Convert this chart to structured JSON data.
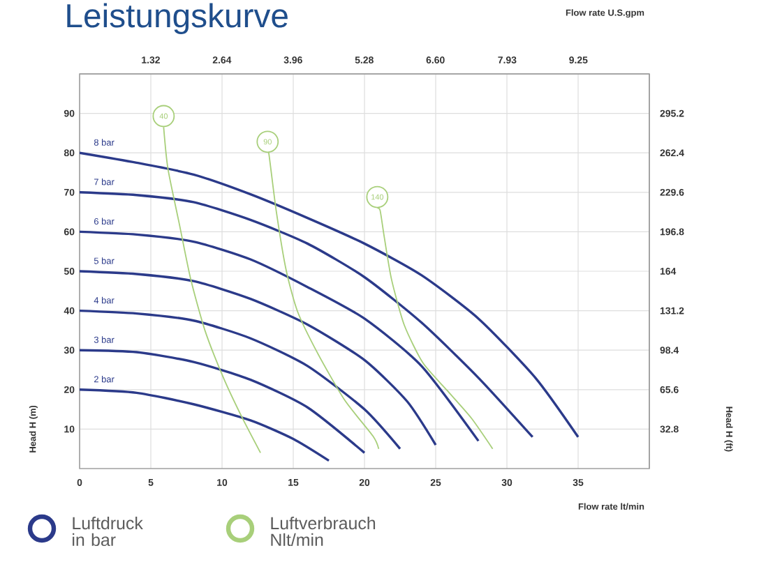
{
  "chart_data": {
    "type": "line",
    "title": "Leistungskurve",
    "xlabel": "Flow rate  lt/min",
    "x2label": "Flow rate U.S.gpm",
    "ylabel": "Head H (m)",
    "y2label": "Head H (ft)",
    "xlim": [
      0,
      40
    ],
    "xticks": [
      0,
      5,
      10,
      15,
      20,
      25,
      30,
      35
    ],
    "ylim": [
      0,
      100
    ],
    "yticks": [
      10,
      20,
      30,
      40,
      50,
      60,
      70,
      80,
      90
    ],
    "x2lim": [
      0,
      10.567
    ],
    "x2ticks": [
      {
        "value": 1.32,
        "label": "1.32"
      },
      {
        "value": 2.64,
        "label": "2.64"
      },
      {
        "value": 3.96,
        "label": "3.96"
      },
      {
        "value": 5.28,
        "label": "5.28"
      },
      {
        "value": 6.6,
        "label": "6.60"
      },
      {
        "value": 7.93,
        "label": "7.93"
      },
      {
        "value": 9.25,
        "label": "9.25"
      }
    ],
    "y2lim": [
      0,
      328
    ],
    "y2ticks": [
      32.8,
      65.6,
      98.4,
      131.2,
      164,
      196.8,
      229.6,
      262.4,
      295.2
    ],
    "grid": true,
    "marker": "none",
    "line_style": "solid",
    "series": [
      {
        "name": "8 bar",
        "color": "#2b3a8a",
        "x": [
          0,
          4,
          8,
          12,
          16,
          20,
          24,
          28,
          32,
          35
        ],
        "values": [
          80,
          77.5,
          74.5,
          69.5,
          63.5,
          57,
          49,
          38,
          23,
          8
        ]
      },
      {
        "name": "7 bar",
        "color": "#2b3a8a",
        "x": [
          0,
          4,
          8,
          12,
          16,
          20,
          24,
          28,
          31.8
        ],
        "values": [
          70,
          69.3,
          67.5,
          63,
          57,
          48.5,
          37,
          23,
          8
        ]
      },
      {
        "name": "6 bar",
        "color": "#2b3a8a",
        "x": [
          0,
          4,
          8,
          12,
          16,
          20,
          24,
          28
        ],
        "values": [
          60,
          59.3,
          57.5,
          53,
          46,
          38,
          26,
          7
        ]
      },
      {
        "name": "5 bar",
        "color": "#2b3a8a",
        "x": [
          0,
          4,
          8,
          12,
          16,
          20,
          23,
          25
        ],
        "values": [
          50,
          49.3,
          47.5,
          43,
          36.5,
          27.5,
          17,
          6
        ]
      },
      {
        "name": "4 bar",
        "color": "#2b3a8a",
        "x": [
          0,
          4,
          8,
          12,
          16,
          20,
          22.5
        ],
        "values": [
          40,
          39.3,
          37.5,
          33,
          26,
          15,
          5
        ]
      },
      {
        "name": "3 bar",
        "color": "#2b3a8a",
        "x": [
          0,
          4,
          8,
          12,
          16,
          20
        ],
        "values": [
          30,
          29.5,
          27,
          22.5,
          15.5,
          4
        ]
      },
      {
        "name": "2 bar",
        "color": "#2b3a8a",
        "x": [
          0,
          4,
          8,
          12,
          15,
          17.5
        ],
        "values": [
          20,
          19.2,
          16.3,
          12.2,
          7.5,
          2
        ]
      },
      {
        "name": "40",
        "color": "#a8cf7a",
        "x": [
          5.9,
          6.2,
          7,
          7.8,
          8.8,
          10.1,
          11.4,
          12.7
        ],
        "values": [
          86.5,
          76,
          62,
          48,
          35,
          23,
          13,
          4
        ]
      },
      {
        "name": "90",
        "color": "#a8cf7a",
        "x": [
          13.2,
          13.3,
          13.8,
          14.5,
          15.3,
          16.7,
          18.6,
          20.6,
          21
        ],
        "values": [
          80,
          79.5,
          65.4,
          50.3,
          39.8,
          29.3,
          17.4,
          8.2,
          5
        ]
      },
      {
        "name": "140",
        "color": "#a8cf7a",
        "x": [
          20.9,
          21.1,
          21.4,
          21.9,
          22.8,
          24.1,
          25.8,
          27.5,
          29
        ],
        "values": [
          66,
          65.4,
          58.4,
          47.9,
          36.3,
          26.8,
          19.8,
          12.8,
          5
        ]
      }
    ],
    "annotations": [
      "Luftdruck in bar",
      "Luftverbrauch Nlt/min"
    ]
  }
}
